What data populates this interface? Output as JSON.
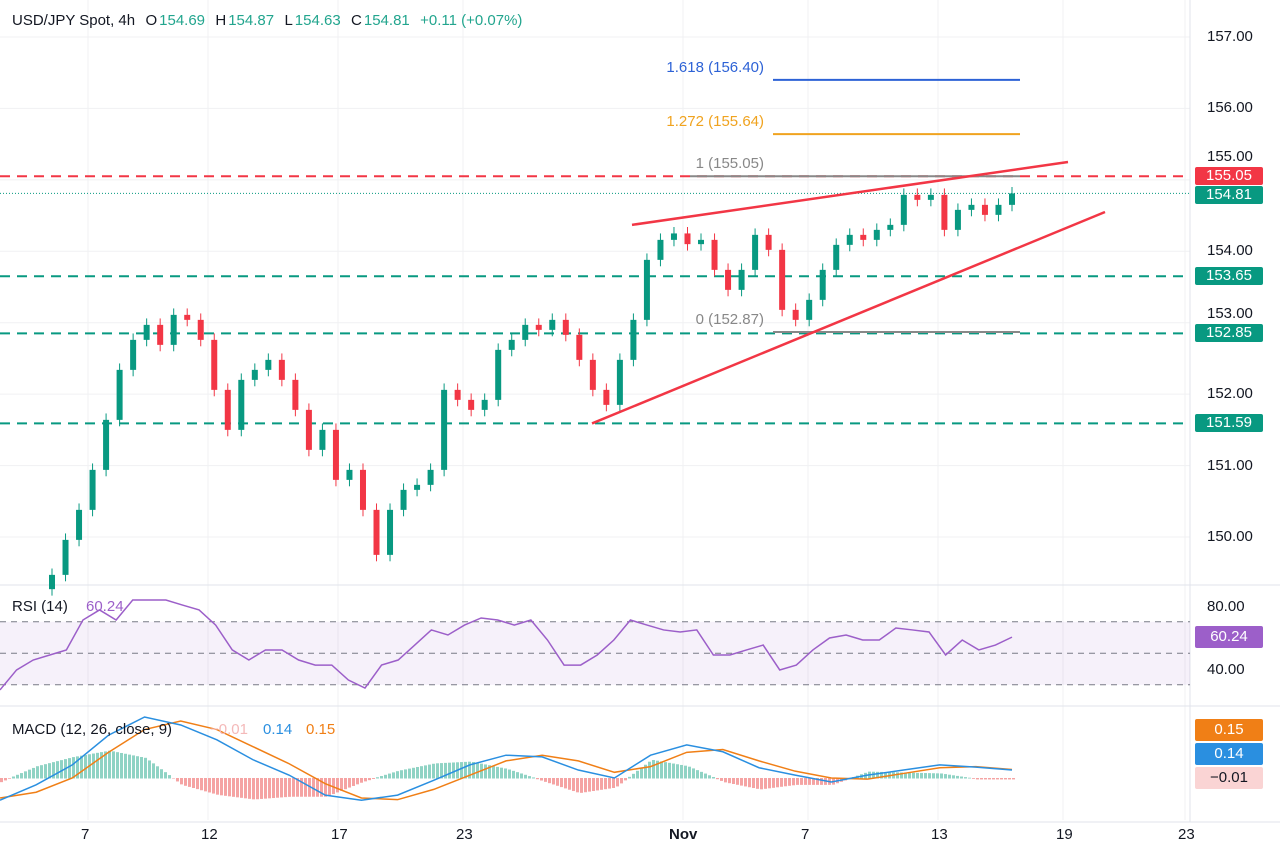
{
  "header": {
    "symbol": "USD/JPY Spot, 4h",
    "o_label": "O",
    "o": "154.69",
    "h_label": "H",
    "h": "154.87",
    "l_label": "L",
    "l": "154.63",
    "c_label": "C",
    "c": "154.81",
    "change": "+0.11 (+0.07%)"
  },
  "colors": {
    "up": "#089981",
    "down": "#f23645",
    "level_red": "#f23645",
    "level_green": "#089981",
    "rsi": "#9c5fc9",
    "macd": "#2a8fe0",
    "signal": "#f07f16",
    "fib_ext2": "#2d62d6",
    "fib_ext1": "#f0a31f",
    "fib_base": "#888888"
  },
  "chart_data": [
    {
      "type": "candlestick",
      "title": "USD/JPY Spot, 4h",
      "x_ticks": [
        "7",
        "12",
        "17",
        "23",
        "Nov",
        "7",
        "13",
        "19",
        "23"
      ],
      "y_ticks": [
        "157.00",
        "156.00",
        "155.00",
        "154.00",
        "153.00",
        "152.00",
        "151.00",
        "150.00"
      ],
      "ylim": [
        149.3,
        157.3
      ],
      "closes": [
        149.47,
        149.96,
        150.38,
        150.94,
        151.64,
        152.34,
        152.76,
        152.97,
        152.69,
        153.11,
        153.04,
        152.76,
        152.06,
        151.5,
        152.2,
        152.34,
        152.48,
        152.2,
        151.78,
        151.22,
        151.5,
        150.8,
        150.94,
        150.38,
        149.75,
        150.38,
        150.66,
        150.73,
        150.94,
        152.06,
        151.92,
        151.78,
        151.92,
        152.62,
        152.76,
        152.97,
        152.9,
        153.04,
        152.83,
        152.48,
        152.06,
        151.85,
        152.48,
        153.04,
        153.88,
        154.16,
        154.25,
        154.1,
        154.16,
        153.74,
        153.46,
        153.74,
        154.23,
        154.02,
        153.18,
        153.04,
        153.32,
        153.74,
        154.09,
        154.23,
        154.16,
        154.3,
        154.37,
        154.79,
        154.72,
        154.79,
        154.3,
        154.58,
        154.65,
        154.51,
        154.65,
        154.81
      ],
      "levels": [
        {
          "label": "155.05",
          "value": 155.05,
          "color": "red",
          "style": "dashed"
        },
        {
          "label": "154.81",
          "value": 154.81,
          "color": "green",
          "style": "dotted"
        },
        {
          "label": "153.65",
          "value": 153.65,
          "color": "green",
          "style": "dashed"
        },
        {
          "label": "152.85",
          "value": 152.85,
          "color": "green",
          "style": "dashed"
        },
        {
          "label": "151.59",
          "value": 151.59,
          "color": "green",
          "style": "dashed"
        }
      ],
      "fibonacci": [
        {
          "label": "1.618 (156.40)",
          "value": 156.4,
          "color": "#2d62d6"
        },
        {
          "label": "1.272 (155.64)",
          "value": 155.64,
          "color": "#f0a31f"
        },
        {
          "label": "1 (155.05)",
          "value": 155.05,
          "color": "#888888"
        },
        {
          "label": "0 (152.87)",
          "value": 152.87,
          "color": "#888888"
        }
      ],
      "trendlines": [
        {
          "name": "wedge-upper",
          "from_price": 154.37,
          "to_price": 155.25
        },
        {
          "name": "wedge-lower",
          "from_price": 151.59,
          "to_price": 154.55
        }
      ]
    },
    {
      "type": "line",
      "title": "RSI (14)",
      "value_label": "60.24",
      "y_ticks": [
        "80.00",
        "40.00"
      ],
      "bands": [
        70,
        50,
        30
      ],
      "values": [
        26.7,
        39.4,
        45.7,
        48.9,
        52.1,
        71.1,
        77.5,
        71.1,
        83.8,
        83.8,
        83.8,
        80.6,
        77.5,
        67.9,
        52.1,
        45.7,
        52.1,
        52.1,
        45.7,
        42.5,
        42.5,
        33,
        27.9,
        42.5,
        45.7,
        55.2,
        64.8,
        61.6,
        67.9,
        72.4,
        71.1,
        67.9,
        71.1,
        58.4,
        42.5,
        42.5,
        48.9,
        58.4,
        71.1,
        67.9,
        64.8,
        63.5,
        64.8,
        48.9,
        48.9,
        52.1,
        55.2,
        39.4,
        42.5,
        52.1,
        59.7,
        61.6,
        58.4,
        58.4,
        66,
        64.8,
        63.5,
        48.9,
        58.4,
        52.1,
        55.2,
        60.24
      ]
    },
    {
      "type": "line",
      "title": "MACD (12, 26, close, 9)",
      "hist_label": "−0.01",
      "macd_label": "0.14",
      "signal_label": "0.15",
      "macd": [
        -0.39,
        -0.12,
        0.23,
        0.75,
        1.07,
        0.93,
        0.67,
        0.32,
        0.05,
        -0.3,
        -0.39,
        -0.3,
        -0.04,
        0.23,
        0.4,
        0.37,
        0.14,
        0,
        0.4,
        0.58,
        0.46,
        0.18,
        0.05,
        -0.07,
        0.05,
        0.14,
        0.23,
        0.19,
        0.14
      ],
      "signal": [
        -0.35,
        -0.25,
        0.0,
        0.45,
        0.85,
        1.0,
        0.85,
        0.55,
        0.25,
        -0.1,
        -0.35,
        -0.38,
        -0.2,
        0.05,
        0.3,
        0.4,
        0.3,
        0.1,
        0.2,
        0.45,
        0.5,
        0.3,
        0.12,
        0,
        -0.02,
        0.08,
        0.18,
        0.2,
        0.15
      ]
    }
  ]
}
